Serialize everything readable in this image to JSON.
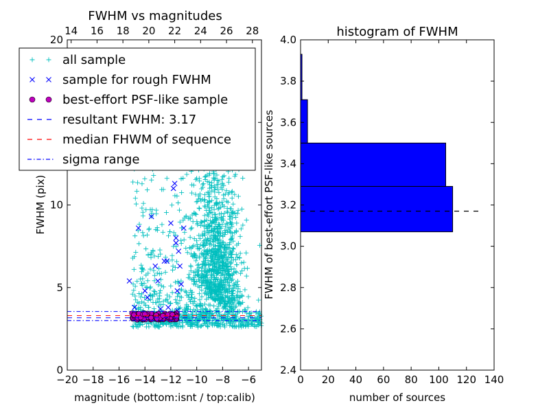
{
  "chart_data": [
    {
      "type": "scatter",
      "title": "FWHM vs magnitudes",
      "xlabel": "magnitude (bottom:isnt / top:calib)",
      "ylabel": "FWHM (pix)",
      "xlim": [
        -20,
        -5
      ],
      "ylim": [
        0,
        20
      ],
      "x_ticks": [
        "−20",
        "−18",
        "−16",
        "−14",
        "−12",
        "−10",
        "−8",
        "−6"
      ],
      "x_tick_values": [
        -20,
        -18,
        -16,
        -14,
        -12,
        -10,
        -8,
        -6
      ],
      "top_ticks": [
        "14",
        "16",
        "18",
        "20",
        "22",
        "24",
        "26",
        "28"
      ],
      "top_tick_values": [
        14,
        16,
        18,
        20,
        22,
        24,
        26,
        28
      ],
      "top_xlim": [
        13.7,
        28.7
      ],
      "y_ticks": [
        "0",
        "5",
        "10",
        "15",
        "20"
      ],
      "y_tick_values": [
        0,
        5,
        10,
        15,
        20
      ],
      "legend": {
        "placement": "upper-left",
        "entries": [
          {
            "label": "all sample",
            "marker": "plus",
            "color": "#00bfbf"
          },
          {
            "label": "sample for rough FWHM",
            "marker": "x",
            "color": "#0000ff"
          },
          {
            "label": "best-effort PSF-like sample",
            "marker": "circle",
            "color": "#bf00bf"
          },
          {
            "label": "resultant FWHM: 3.17",
            "marker": "dashed",
            "color": "#0000ff"
          },
          {
            "label": "median FHWM of sequence",
            "marker": "dashed",
            "color": "#ff0000"
          },
          {
            "label": "sigma range",
            "marker": "dashdot",
            "color": "#0000ff"
          }
        ]
      },
      "series": [
        {
          "name": "all sample",
          "color": "#00bfbf",
          "note": "dense cloud, magnitudes -15 to -5, FWHM 2.5 to 20, densest near -8"
        },
        {
          "name": "sample for rough FWHM",
          "color": "#0000ff",
          "points": [
            [
              -15.2,
              5.4
            ],
            [
              -14.5,
              8.6
            ],
            [
              -14.0,
              4.8
            ],
            [
              -13.8,
              4.4
            ],
            [
              -13.5,
              9.3
            ],
            [
              -13.2,
              6.3
            ],
            [
              -13.0,
              5.4
            ],
            [
              -12.8,
              3.7
            ],
            [
              -12.5,
              6.6
            ],
            [
              -12.3,
              6.6
            ],
            [
              -12.0,
              8.9
            ],
            [
              -11.8,
              11.0
            ],
            [
              -11.7,
              11.3
            ],
            [
              -11.6,
              7.7
            ],
            [
              -11.6,
              8.0
            ],
            [
              -11.5,
              4.8
            ],
            [
              -11.4,
              7.2
            ],
            [
              -11.3,
              6.3
            ],
            [
              -11.2,
              5.2
            ],
            [
              -11.0,
              8.6
            ],
            [
              -14.8,
              3.8
            ],
            [
              -12.2,
              3.8
            ],
            [
              -11.5,
              3.6
            ]
          ]
        },
        {
          "name": "best-effort PSF-like sample",
          "color": "#bf00bf",
          "x_range": [
            -15.0,
            -11.5
          ],
          "y_range": [
            3.0,
            3.5
          ]
        }
      ],
      "hlines": [
        {
          "name": "resultant FWHM",
          "y": 3.17,
          "color": "#0000ff",
          "style": "dashed"
        },
        {
          "name": "median FHWM of sequence",
          "y": 3.3,
          "color": "#ff0000",
          "style": "dashed"
        },
        {
          "name": "sigma range upper",
          "y": 3.55,
          "color": "#0000ff",
          "style": "dashdot"
        },
        {
          "name": "sigma range lower",
          "y": 3.0,
          "color": "#0000ff",
          "style": "dashdot"
        }
      ]
    },
    {
      "type": "bar",
      "orientation": "horizontal",
      "title": "histogram of FWHM",
      "xlabel": "number of sources",
      "ylabel": "FWHM of best-effort PSF-like sources",
      "xlim": [
        0,
        140
      ],
      "ylim": [
        2.4,
        4.0
      ],
      "x_ticks": [
        "0",
        "20",
        "40",
        "60",
        "80",
        "100",
        "120",
        "140"
      ],
      "x_tick_values": [
        0,
        20,
        40,
        60,
        80,
        100,
        120,
        140
      ],
      "y_ticks": [
        "2.4",
        "2.6",
        "2.8",
        "3.0",
        "3.2",
        "3.4",
        "3.6",
        "3.8",
        "4.0"
      ],
      "y_tick_values": [
        2.4,
        2.6,
        2.8,
        3.0,
        3.2,
        3.4,
        3.6,
        3.8,
        4.0
      ],
      "color": "#0000ff",
      "bins": [
        {
          "y0": 3.07,
          "y1": 3.29,
          "count": 110
        },
        {
          "y0": 3.29,
          "y1": 3.5,
          "count": 105
        },
        {
          "y0": 3.5,
          "y1": 3.71,
          "count": 5
        },
        {
          "y0": 3.71,
          "y1": 3.93,
          "count": 1
        }
      ],
      "hline": {
        "y": 3.17,
        "xmax": 129,
        "style": "dashed",
        "color": "#000000"
      }
    }
  ]
}
